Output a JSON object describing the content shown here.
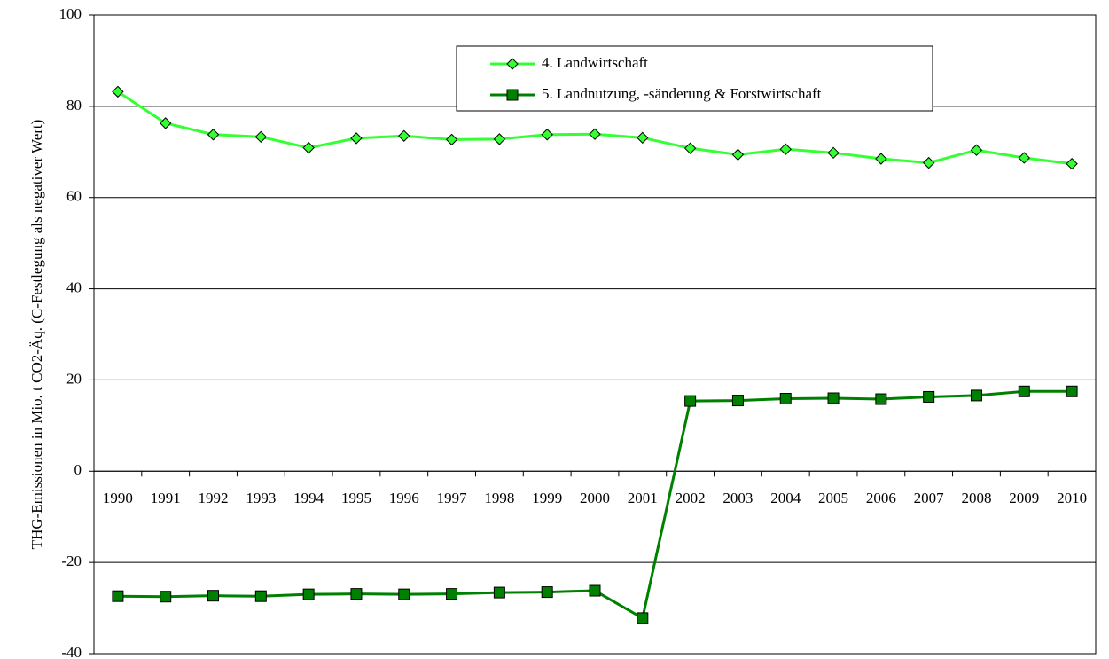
{
  "chart_data": {
    "type": "line",
    "y_label": "THG-Emissionen in Mio. t CO2-Äq. (C-Festlegung als negativer Wert)",
    "categories": [
      "1990",
      "1991",
      "1992",
      "1993",
      "1994",
      "1995",
      "1996",
      "1997",
      "1998",
      "1999",
      "2000",
      "2001",
      "2002",
      "2003",
      "2004",
      "2005",
      "2006",
      "2007",
      "2008",
      "2009",
      "2010"
    ],
    "series": [
      {
        "name": "4. Landwirtschaft",
        "color": "#33ff33",
        "marker": "diamond",
        "values": [
          83.2,
          76.3,
          73.8,
          73.3,
          70.9,
          73.0,
          73.5,
          72.7,
          72.8,
          73.8,
          73.9,
          73.1,
          70.8,
          69.4,
          70.6,
          69.8,
          68.5,
          67.6,
          70.4,
          68.7,
          67.4
        ]
      },
      {
        "name": "5. Landnutzung, -sänderung & Forstwirtschaft",
        "color": "#008000",
        "marker": "square",
        "values": [
          -27.4,
          -27.5,
          -27.3,
          -27.4,
          -27.0,
          -26.9,
          -27.0,
          -26.9,
          -26.6,
          -26.5,
          -26.2,
          -32.2,
          15.4,
          15.5,
          15.9,
          16.0,
          15.8,
          16.3,
          16.6,
          17.5,
          17.5
        ]
      }
    ],
    "ylim": [
      -40,
      100
    ],
    "yticks": [
      -40,
      -20,
      0,
      20,
      40,
      60,
      80,
      100
    ],
    "grid": true,
    "legend": "top"
  }
}
